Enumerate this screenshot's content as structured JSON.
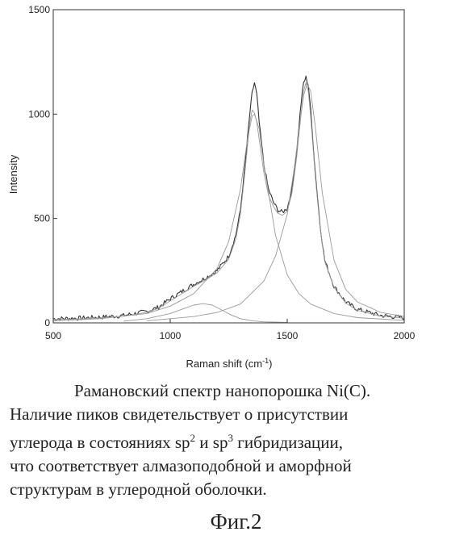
{
  "chart_data": {
    "type": "line",
    "title": "",
    "xlabel": "Raman shift (cm",
    "xlabel_sup": "-1",
    "xlabel_close": ")",
    "ylabel": "Intensity",
    "xlim": [
      500,
      2000
    ],
    "ylim": [
      0,
      1500
    ],
    "x_ticks": [
      500,
      1000,
      1500,
      2000
    ],
    "y_ticks": [
      0,
      500,
      1000,
      1500
    ],
    "grid": false,
    "series": [
      {
        "kind": "measured",
        "color": "#333333",
        "x": [
          500,
          600,
          700,
          800,
          900,
          950,
          1000,
          1050,
          1100,
          1150,
          1200,
          1250,
          1280,
          1300,
          1320,
          1340,
          1350,
          1360,
          1370,
          1380,
          1400,
          1420,
          1440,
          1460,
          1480,
          1500,
          1520,
          1540,
          1560,
          1570,
          1580,
          1590,
          1600,
          1620,
          1640,
          1660,
          1700,
          1750,
          1800,
          1900,
          2000
        ],
        "y": [
          20,
          22,
          27,
          35,
          55,
          75,
          115,
          150,
          185,
          215,
          250,
          320,
          420,
          540,
          760,
          1000,
          1100,
          1150,
          1090,
          960,
          760,
          640,
          580,
          540,
          530,
          550,
          640,
          820,
          1060,
          1150,
          1175,
          1140,
          1020,
          720,
          470,
          300,
          175,
          100,
          65,
          35,
          25
        ]
      },
      {
        "kind": "fit-total",
        "color": "#9a9a9a",
        "x": [
          500,
          600,
          700,
          800,
          900,
          950,
          1000,
          1050,
          1100,
          1150,
          1200,
          1250,
          1280,
          1300,
          1320,
          1340,
          1350,
          1360,
          1370,
          1380,
          1400,
          1420,
          1440,
          1460,
          1480,
          1500,
          1520,
          1540,
          1560,
          1570,
          1580,
          1590,
          1600,
          1620,
          1640,
          1660,
          1700,
          1750,
          1800,
          1900,
          2000
        ],
        "y": [
          15,
          18,
          23,
          32,
          50,
          70,
          105,
          140,
          175,
          205,
          240,
          305,
          400,
          520,
          730,
          960,
          1020,
          1005,
          960,
          880,
          720,
          610,
          560,
          525,
          515,
          535,
          620,
          790,
          1010,
          1110,
          1150,
          1110,
          990,
          700,
          460,
          295,
          170,
          95,
          60,
          32,
          22
        ]
      },
      {
        "kind": "fit-peak",
        "color": "#9a9a9a",
        "x": [
          500,
          700,
          900,
          1000,
          1100,
          1200,
          1250,
          1300,
          1330,
          1350,
          1360,
          1380,
          1400,
          1450,
          1500,
          1550,
          1600,
          1700,
          1800,
          2000
        ],
        "y": [
          10,
          20,
          45,
          80,
          140,
          260,
          390,
          640,
          880,
          990,
          1000,
          930,
          760,
          420,
          230,
          140,
          90,
          45,
          25,
          12
        ]
      },
      {
        "kind": "fit-peak",
        "color": "#9a9a9a",
        "x": [
          900,
          1100,
          1200,
          1300,
          1400,
          1450,
          1500,
          1530,
          1550,
          1570,
          1585,
          1600,
          1620,
          1650,
          1700,
          1750,
          1800,
          1900,
          2000
        ],
        "y": [
          10,
          30,
          50,
          90,
          200,
          320,
          520,
          740,
          920,
          1090,
          1145,
          1110,
          940,
          620,
          300,
          160,
          100,
          50,
          30
        ]
      },
      {
        "kind": "fit-peak",
        "color": "#9a9a9a",
        "x": [
          800,
          900,
          1000,
          1050,
          1100,
          1140,
          1180,
          1220,
          1260,
          1300,
          1350,
          1400,
          1500
        ],
        "y": [
          8,
          20,
          45,
          65,
          85,
          92,
          85,
          62,
          38,
          20,
          10,
          5,
          2
        ]
      }
    ]
  },
  "caption": {
    "line1_a": "Рамановский спектр нанопорошка Ni(C).",
    "line2_a": "Наличие пиков свидетельствует о присутствии",
    "line3_a": "углерода в состояниях sp",
    "line3_sup1": "2",
    "line3_b": " и sp",
    "line3_sup2": "3",
    "line3_c": " гибридизации,",
    "line4_a": "что соответствует алмазоподобной и аморфной",
    "line5_a": "структурам в углеродной оболочки."
  },
  "figure_label": "Фиг.2"
}
